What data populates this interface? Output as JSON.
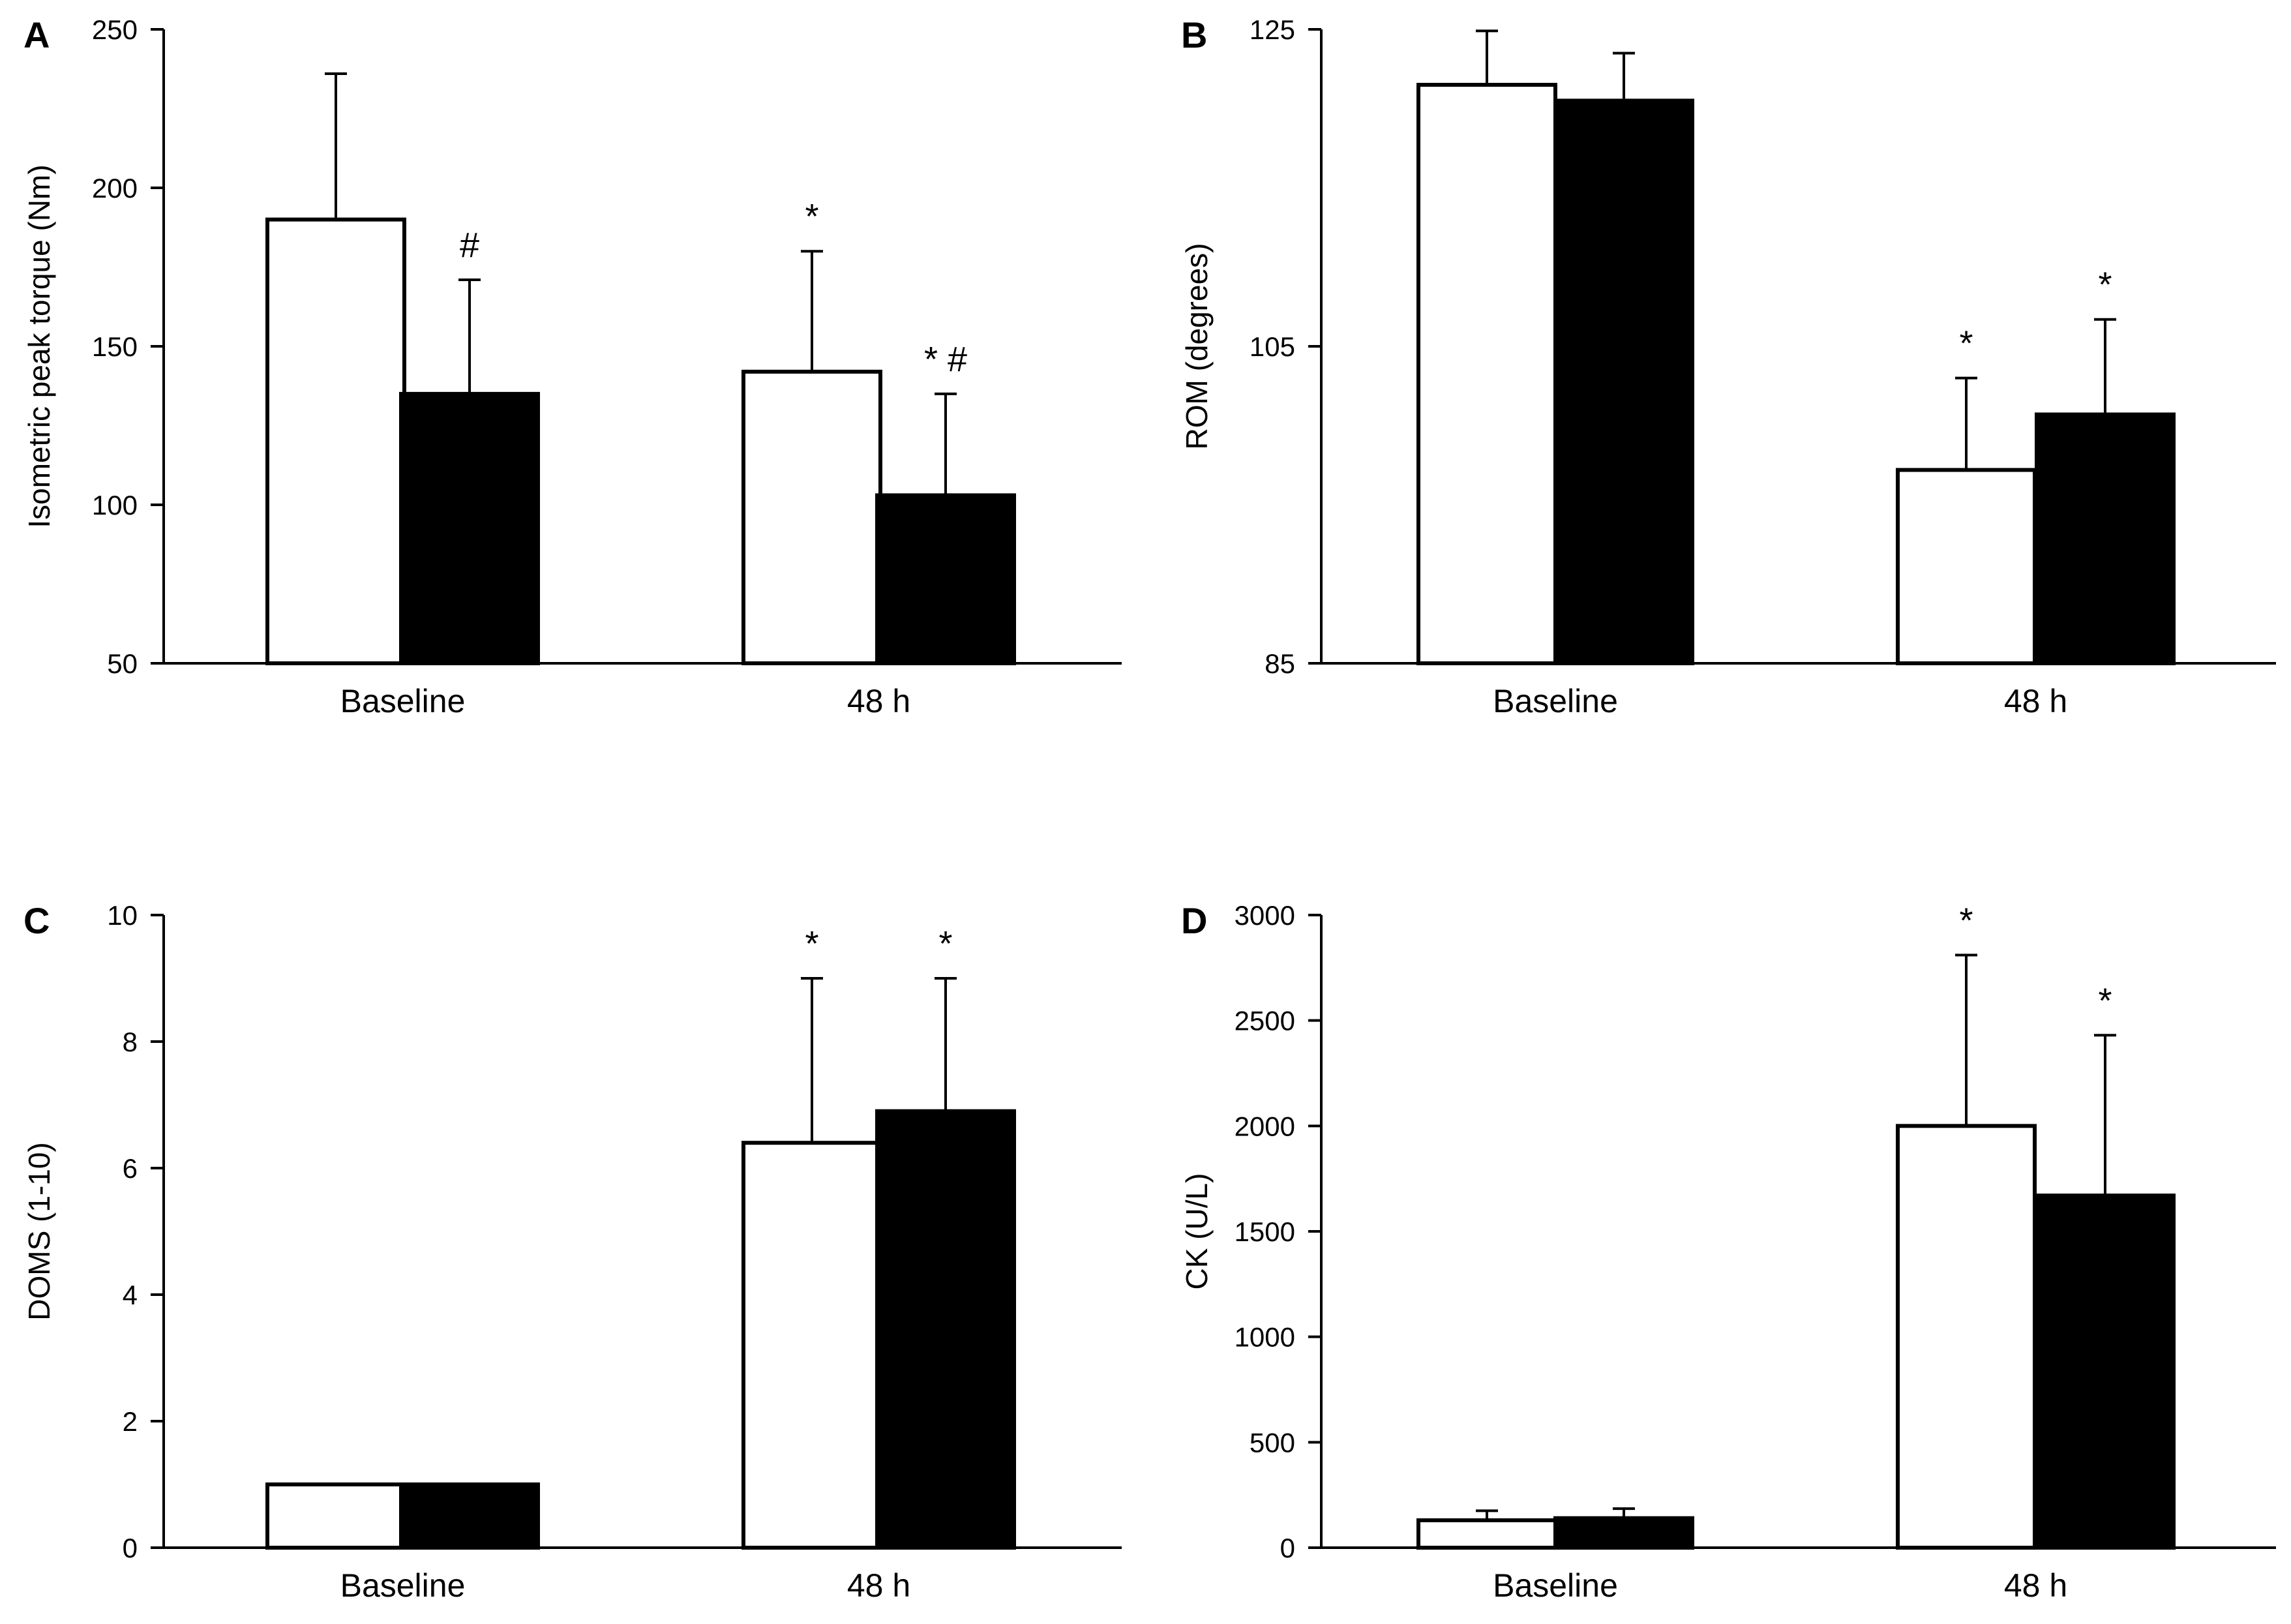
{
  "figure_description_none": "",
  "colors": {
    "control": "#ffffff",
    "treatment": "#000000",
    "axis": "#000000"
  },
  "chart_data": [
    {
      "panel": "A",
      "type": "bar",
      "ylabel": "Isometric peak torque (Nm)",
      "ylim": [
        50,
        250
      ],
      "yticks": [
        50,
        100,
        150,
        200,
        250
      ],
      "categories": [
        "Baseline",
        "48 h"
      ],
      "series": [
        {
          "name": "open",
          "values": [
            190,
            142
          ],
          "errors": [
            46,
            38
          ],
          "sig": [
            "",
            "*"
          ]
        },
        {
          "name": "filled",
          "values": [
            135,
            103
          ],
          "errors": [
            36,
            32
          ],
          "sig": [
            "#",
            "* #"
          ]
        }
      ]
    },
    {
      "panel": "B",
      "type": "bar",
      "ylabel": "ROM (degrees)",
      "ylim": [
        85,
        125
      ],
      "yticks": [
        85,
        105,
        125
      ],
      "categories": [
        "Baseline",
        "48 h"
      ],
      "series": [
        {
          "name": "open",
          "values": [
            121.5,
            97.2
          ],
          "errors": [
            3.4,
            5.8
          ],
          "sig": [
            "",
            "*"
          ]
        },
        {
          "name": "filled",
          "values": [
            120.5,
            100.7
          ],
          "errors": [
            3.0,
            6.0
          ],
          "sig": [
            "",
            "*"
          ]
        }
      ]
    },
    {
      "panel": "C",
      "type": "bar",
      "ylabel": "DOMS (1-10)",
      "ylim": [
        0,
        10
      ],
      "yticks": [
        0,
        2,
        4,
        6,
        8,
        10
      ],
      "categories": [
        "Baseline",
        "48 h"
      ],
      "series": [
        {
          "name": "open",
          "values": [
            1.0,
            6.4
          ],
          "errors": [
            0,
            2.6
          ],
          "sig": [
            "",
            "*"
          ]
        },
        {
          "name": "filled",
          "values": [
            1.0,
            6.9
          ],
          "errors": [
            0,
            2.1
          ],
          "sig": [
            "",
            "*"
          ]
        }
      ]
    },
    {
      "panel": "D",
      "type": "bar",
      "ylabel": "CK (U/L)",
      "ylim": [
        0,
        3000
      ],
      "yticks": [
        0,
        500,
        1000,
        1500,
        2000,
        2500,
        3000
      ],
      "categories": [
        "Baseline",
        "48 h"
      ],
      "series": [
        {
          "name": "open",
          "values": [
            130,
            2000
          ],
          "errors": [
            45,
            810
          ],
          "sig": [
            "",
            "*"
          ]
        },
        {
          "name": "filled",
          "values": [
            140,
            1670
          ],
          "errors": [
            45,
            760
          ],
          "sig": [
            "",
            "*"
          ]
        }
      ]
    }
  ]
}
